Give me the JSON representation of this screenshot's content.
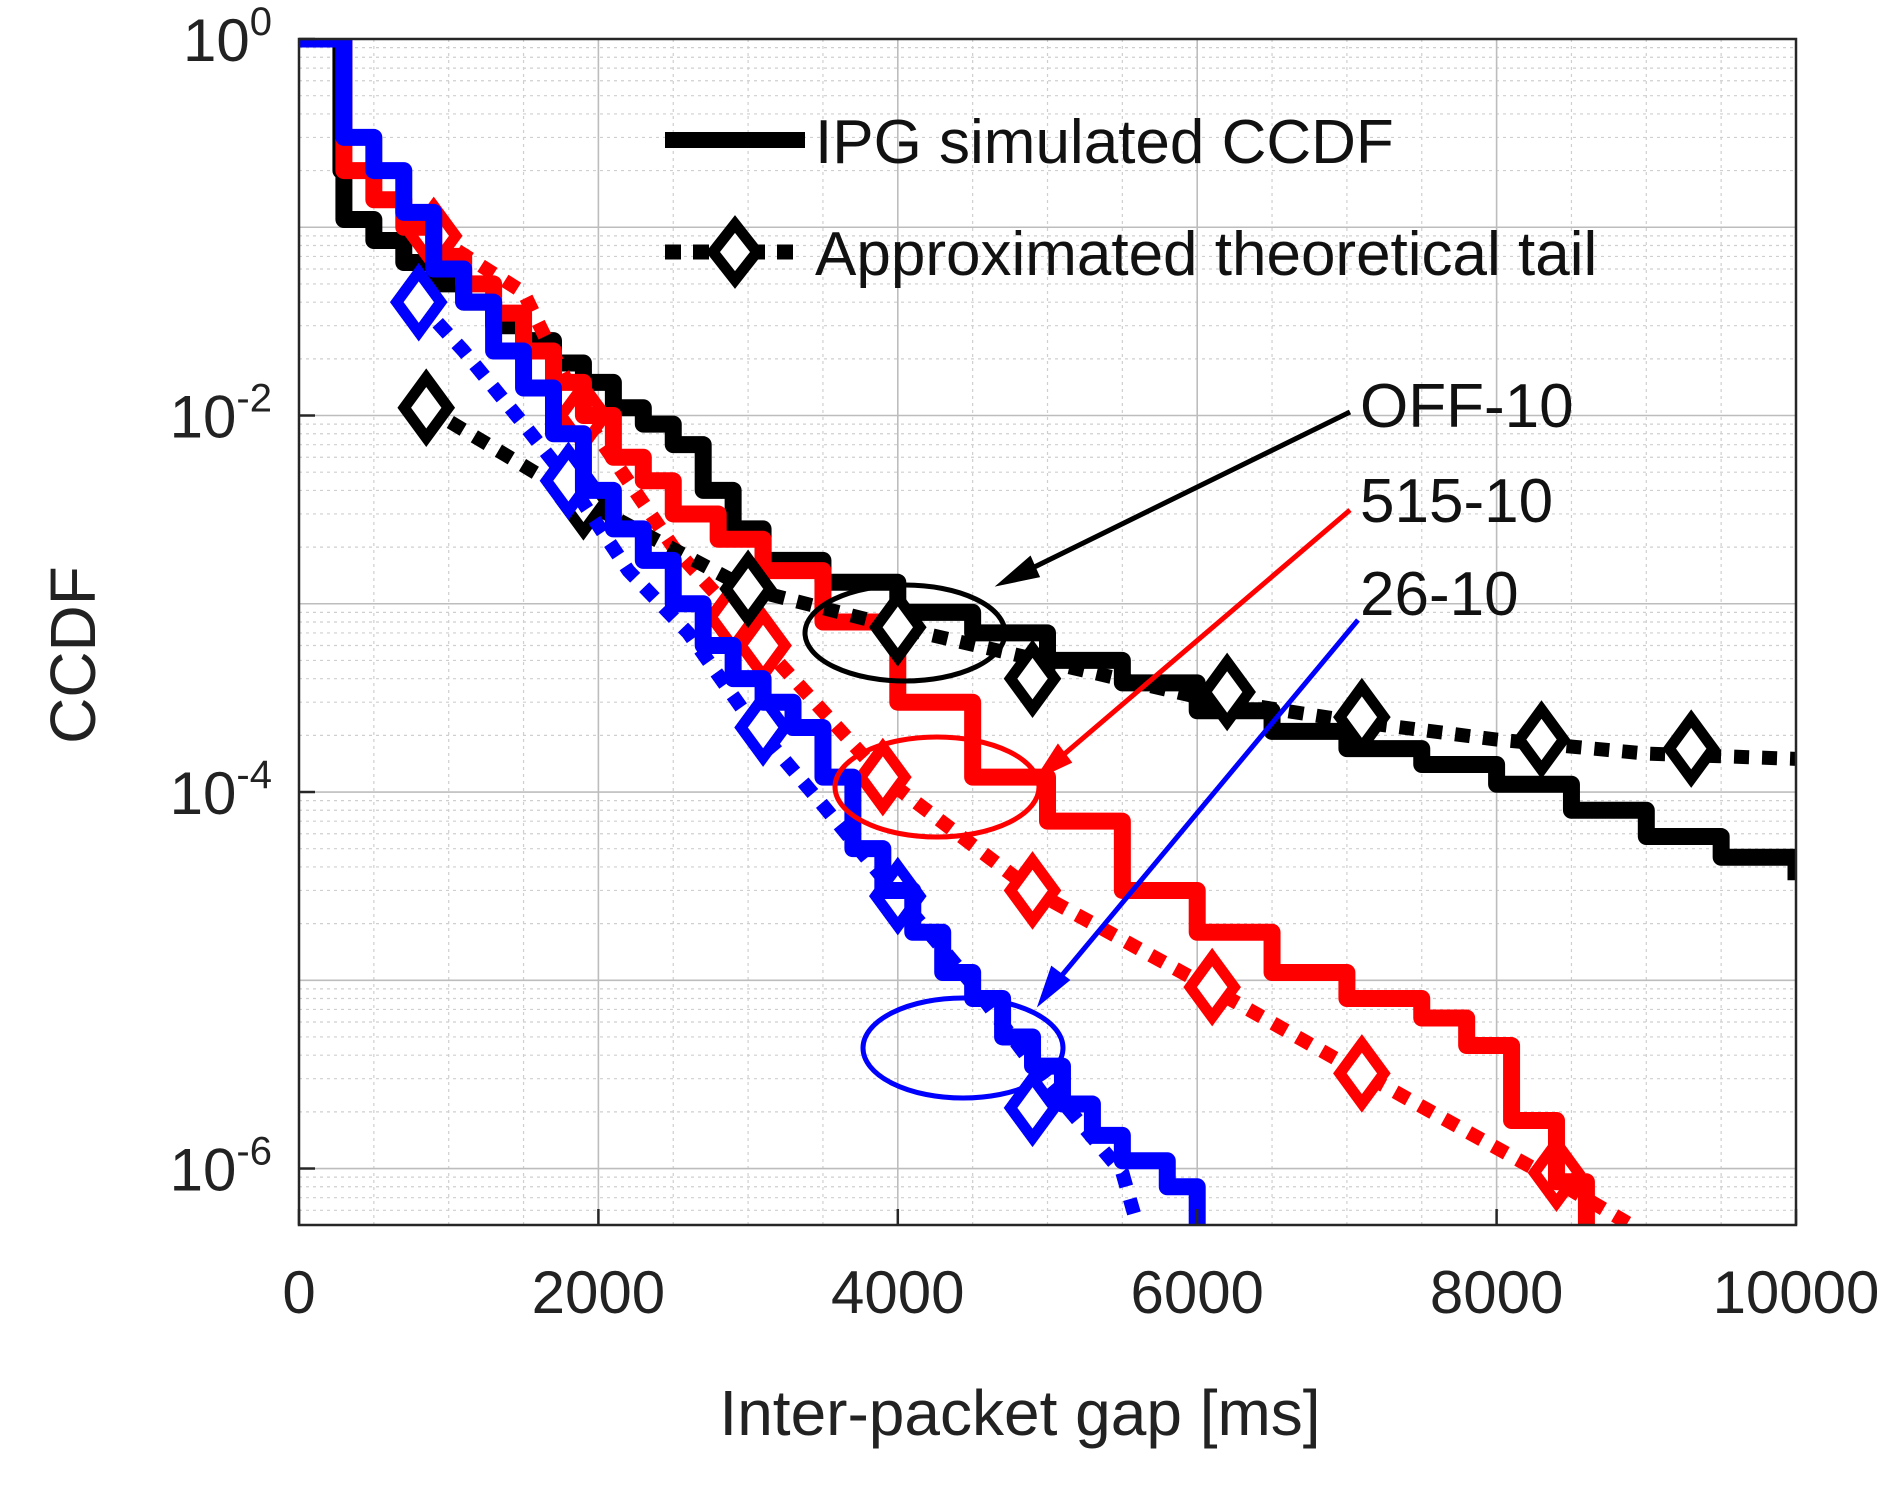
{
  "chart_data": {
    "type": "line",
    "title": "",
    "xlabel": "Inter-packet gap [ms]",
    "ylabel": "CCDF",
    "xlim": [
      0,
      10000
    ],
    "ylim_log10": [
      -6.3,
      0
    ],
    "yscale": "log",
    "grid": true,
    "minor_grid": true,
    "x_ticks": [
      {
        "value": 0,
        "label": "0"
      },
      {
        "value": 2000,
        "label": "2000"
      },
      {
        "value": 4000,
        "label": "4000"
      },
      {
        "value": 6000,
        "label": "6000"
      },
      {
        "value": 8000,
        "label": "8000"
      },
      {
        "value": 10000,
        "label": "10000"
      }
    ],
    "y_ticks": [
      {
        "exp": 0,
        "base": "10",
        "sup": "0"
      },
      {
        "exp": -2,
        "base": "10",
        "sup": "-2"
      },
      {
        "exp": -4,
        "base": "10",
        "sup": "-4"
      },
      {
        "exp": -6,
        "base": "10",
        "sup": "-6"
      }
    ],
    "legend": [
      {
        "label": "IPG simulated CCDF",
        "style": "solid"
      },
      {
        "label": "Approximated theoretical tail",
        "style": "dotted-diamond"
      }
    ],
    "legend_position": "top-right",
    "series": [
      {
        "name": "OFF-10",
        "color": "#000000",
        "kind": "simulated",
        "points": [
          [
            0,
            1
          ],
          [
            270,
            1
          ],
          [
            280,
            0.2
          ],
          [
            300,
            0.11
          ],
          [
            500,
            0.085
          ],
          [
            700,
            0.065
          ],
          [
            900,
            0.05
          ],
          [
            1100,
            0.04
          ],
          [
            1300,
            0.03
          ],
          [
            1500,
            0.025
          ],
          [
            1700,
            0.019
          ],
          [
            1900,
            0.015
          ],
          [
            2100,
            0.011
          ],
          [
            2300,
            0.009
          ],
          [
            2500,
            0.007
          ],
          [
            2700,
            0.004
          ],
          [
            2900,
            0.0025
          ],
          [
            3100,
            0.0017
          ],
          [
            3500,
            0.0013
          ],
          [
            4000,
            0.0009
          ],
          [
            4500,
            0.0007
          ],
          [
            5000,
            0.0005
          ],
          [
            5500,
            0.00038
          ],
          [
            6000,
            0.00027
          ],
          [
            6500,
            0.00021
          ],
          [
            7000,
            0.00017
          ],
          [
            7500,
            0.00014
          ],
          [
            8000,
            0.00011
          ],
          [
            8500,
            8e-05
          ],
          [
            9000,
            5.8e-05
          ],
          [
            9500,
            4.5e-05
          ],
          [
            10000,
            3.4e-05
          ]
        ]
      },
      {
        "name": "OFF-10 theoretical",
        "color": "#000000",
        "kind": "theoretical",
        "points": [
          [
            850,
            0.011
          ],
          [
            1900,
            0.0035
          ],
          [
            3000,
            0.0012
          ],
          [
            4000,
            0.00075
          ],
          [
            5000,
            0.00049
          ],
          [
            6000,
            0.00032
          ],
          [
            7000,
            0.00024
          ],
          [
            8000,
            0.00019
          ],
          [
            9000,
            0.00016
          ],
          [
            10000,
            0.00015
          ]
        ],
        "markers": [
          [
            850,
            0.011
          ],
          [
            1900,
            0.0035
          ],
          [
            3000,
            0.0012
          ],
          [
            4000,
            0.00075
          ],
          [
            4900,
            0.0004
          ],
          [
            6200,
            0.00034
          ],
          [
            7100,
            0.00025
          ],
          [
            8300,
            0.00019
          ],
          [
            9300,
            0.00017
          ]
        ]
      },
      {
        "name": "515-10",
        "color": "#ff0000",
        "kind": "simulated",
        "points": [
          [
            0,
            1
          ],
          [
            270,
            1
          ],
          [
            300,
            0.2
          ],
          [
            500,
            0.14
          ],
          [
            700,
            0.1
          ],
          [
            900,
            0.07
          ],
          [
            1100,
            0.05
          ],
          [
            1300,
            0.035
          ],
          [
            1500,
            0.022
          ],
          [
            1700,
            0.015
          ],
          [
            1900,
            0.01
          ],
          [
            2100,
            0.006
          ],
          [
            2300,
            0.0045
          ],
          [
            2500,
            0.003
          ],
          [
            2800,
            0.0022
          ],
          [
            3100,
            0.0015
          ],
          [
            3500,
            0.0008
          ],
          [
            4000,
            0.0003
          ],
          [
            4500,
            0.00012
          ],
          [
            5000,
            7e-05
          ],
          [
            5500,
            3e-05
          ],
          [
            6000,
            1.8e-05
          ],
          [
            6500,
            1.1e-05
          ],
          [
            7000,
            8e-06
          ],
          [
            7500,
            6.3e-06
          ],
          [
            7800,
            4.5e-06
          ],
          [
            8100,
            1.8e-06
          ],
          [
            8400,
            8.5e-07
          ],
          [
            8600,
            5e-07
          ]
        ]
      },
      {
        "name": "515-10 theoretical",
        "color": "#ff0000",
        "kind": "theoretical",
        "points": [
          [
            900,
            0.09
          ],
          [
            1500,
            0.045
          ],
          [
            1900,
            0.01
          ],
          [
            2500,
            0.002
          ],
          [
            3100,
            0.0006
          ],
          [
            3900,
            0.00012
          ],
          [
            4900,
            3e-05
          ],
          [
            6100,
            9e-06
          ],
          [
            7100,
            3.2e-06
          ],
          [
            8300,
            9.5e-07
          ],
          [
            8900,
            5e-07
          ]
        ],
        "markers": [
          [
            900,
            0.09
          ],
          [
            1900,
            0.01
          ],
          [
            2900,
            0.00085
          ],
          [
            3100,
            0.0006
          ],
          [
            3900,
            0.00012
          ],
          [
            4900,
            3e-05
          ],
          [
            6100,
            9.2e-06
          ],
          [
            7100,
            3.2e-06
          ],
          [
            8400,
            9.5e-07
          ]
        ]
      },
      {
        "name": "26-10",
        "color": "#0000ff",
        "kind": "simulated",
        "points": [
          [
            0,
            1
          ],
          [
            270,
            1
          ],
          [
            300,
            0.3
          ],
          [
            500,
            0.2
          ],
          [
            700,
            0.12
          ],
          [
            900,
            0.06
          ],
          [
            1100,
            0.04
          ],
          [
            1300,
            0.022
          ],
          [
            1500,
            0.014
          ],
          [
            1700,
            0.008
          ],
          [
            1900,
            0.004
          ],
          [
            2100,
            0.0025
          ],
          [
            2300,
            0.0017
          ],
          [
            2500,
            0.001
          ],
          [
            2700,
            0.0006
          ],
          [
            2900,
            0.0004
          ],
          [
            3100,
            0.0003
          ],
          [
            3300,
            0.00022
          ],
          [
            3500,
            0.00012
          ],
          [
            3700,
            5e-05
          ],
          [
            3900,
            3e-05
          ],
          [
            4100,
            1.8e-05
          ],
          [
            4300,
            1.1e-05
          ],
          [
            4500,
            8e-06
          ],
          [
            4700,
            5e-06
          ],
          [
            4900,
            3.5e-06
          ],
          [
            5100,
            2.2e-06
          ],
          [
            5300,
            1.5e-06
          ],
          [
            5500,
            1.1e-06
          ],
          [
            5800,
            8e-07
          ],
          [
            6000,
            5e-07
          ]
        ]
      },
      {
        "name": "26-10 theoretical",
        "color": "#0000ff",
        "kind": "theoretical",
        "points": [
          [
            800,
            0.04
          ],
          [
            1100,
            0.022
          ],
          [
            1500,
            0.009
          ],
          [
            1800,
            0.0045
          ],
          [
            2200,
            0.0015
          ],
          [
            2600,
            0.0007
          ],
          [
            3000,
            0.00025
          ],
          [
            3500,
            8.5e-05
          ],
          [
            4000,
            2.8e-05
          ],
          [
            4500,
            9.5e-06
          ],
          [
            5000,
            2.8e-06
          ],
          [
            5500,
            9.5e-07
          ],
          [
            5600,
            5e-07
          ]
        ],
        "markers": [
          [
            800,
            0.04
          ],
          [
            1800,
            0.0045
          ],
          [
            3100,
            0.00022
          ],
          [
            4000,
            2.8e-05
          ],
          [
            4900,
            2.1e-06
          ]
        ]
      }
    ],
    "annotations": [
      {
        "label": "OFF-10",
        "color": "#000000"
      },
      {
        "label": "515-10",
        "color": "#ff0000"
      },
      {
        "label": "26-10",
        "color": "#0000ff"
      }
    ]
  }
}
